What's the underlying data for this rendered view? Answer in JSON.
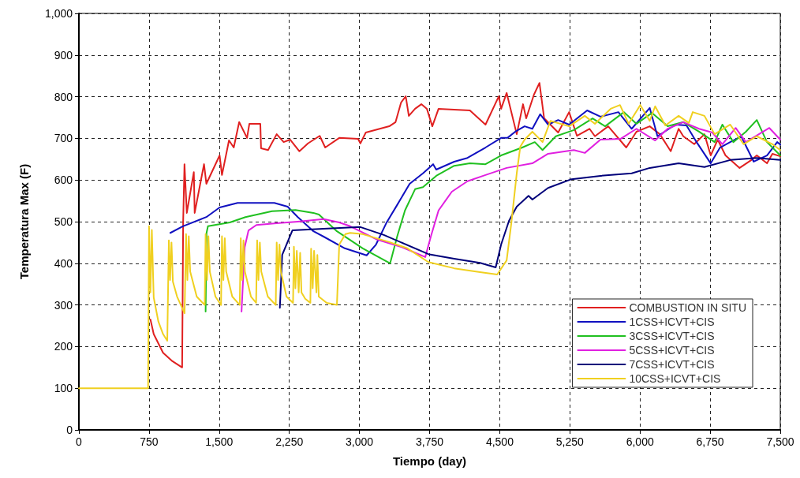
{
  "chart_data": {
    "type": "line",
    "xlabel": "Tiempo (day)",
    "ylabel": "Temperatura Max (F)",
    "xlim": [
      0,
      7500
    ],
    "xticks": [
      0,
      750,
      {
        "value": 1500,
        "label": "1,500"
      },
      {
        "value": 2250,
        "label": "2,250"
      },
      {
        "value": 3000,
        "label": "3,000"
      },
      {
        "value": 3750,
        "label": "3,750"
      },
      {
        "value": 4500,
        "label": "4,500"
      },
      {
        "value": 5250,
        "label": "5,250"
      },
      {
        "value": 6000,
        "label": "6,000"
      },
      {
        "value": 6750,
        "label": "6,750"
      },
      {
        "value": 7500,
        "label": "7,500"
      }
    ],
    "ylim": [
      0,
      1000
    ],
    "yticks": [
      0,
      100,
      200,
      300,
      400,
      500,
      600,
      700,
      800,
      900,
      {
        "value": 1000,
        "label": "1,000"
      }
    ],
    "grid": true,
    "legend": "bottom right",
    "marker": "none",
    "line_style": "solid",
    "series": [
      {
        "name": "COMBUSTION IN SITU",
        "color": "#e02020",
        "x": [
          765,
          800,
          900,
          1000,
          1104,
          1115,
          1129,
          1154,
          1229,
          1238,
          1338,
          1363,
          1505,
          1530,
          1605,
          1656,
          1714,
          1798,
          1823,
          1940,
          1948,
          2023,
          2115,
          2190,
          2258,
          2358,
          2450,
          2575,
          2634,
          2784,
          2985,
          3010,
          3068,
          3319,
          3386,
          3445,
          3495,
          3528,
          3595,
          3662,
          3721,
          3779,
          3846,
          4181,
          4348,
          4490,
          4515,
          4574,
          4682,
          4749,
          4783,
          4866,
          4925,
          4975,
          5125,
          5242,
          5326,
          5460,
          5518,
          5660,
          5853,
          5962,
          6104,
          6212,
          6329,
          6413,
          6463,
          6580,
          6689,
          6756,
          6831,
          6914,
          7065,
          7191,
          7249,
          7358,
          7416,
          7500
        ],
        "values": [
          265,
          230,
          185,
          165,
          150,
          500,
          638,
          521,
          619,
          521,
          638,
          591,
          659,
          612,
          695,
          678,
          739,
          701,
          735,
          735,
          676,
          672,
          710,
          691,
          697,
          669,
          688,
          706,
          678,
          701,
          699,
          688,
          714,
          729,
          739,
          786,
          801,
          754,
          771,
          782,
          771,
          729,
          771,
          767,
          733,
          801,
          771,
          809,
          710,
          782,
          748,
          805,
          833,
          748,
          714,
          763,
          706,
          723,
          705,
          729,
          678,
          716,
          729,
          710,
          669,
          723,
          705,
          686,
          710,
          659,
          697,
          659,
          629,
          648,
          659,
          640,
          663,
          657
        ]
      },
      {
        "name": "1CSS+ICVT+CIS",
        "color": "#1010c0",
        "x": [
          978,
          1112,
          1363,
          1505,
          1697,
          2090,
          2232,
          2341,
          2508,
          2617,
          2843,
          3077,
          3177,
          3286,
          3403,
          3537,
          3679,
          3788,
          3821,
          4013,
          4155,
          4348,
          4515,
          4582,
          4666,
          4766,
          4849,
          4933,
          5017,
          5125,
          5242,
          5435,
          5577,
          5769,
          5911,
          6104,
          6187,
          6380,
          6497,
          6605,
          6756,
          6856,
          6965,
          7082,
          7216,
          7358,
          7467,
          7500
        ],
        "values": [
          473,
          489,
          511,
          534,
          545,
          545,
          536,
          511,
          477,
          464,
          436,
          419,
          445,
          496,
          540,
          591,
          616,
          638,
          625,
          644,
          653,
          678,
          701,
          701,
          716,
          729,
          723,
          758,
          733,
          744,
          733,
          767,
          752,
          763,
          723,
          773,
          705,
          733,
          731,
          691,
          640,
          678,
          691,
          705,
          644,
          659,
          691,
          685
        ]
      },
      {
        "name": "3CSS+ICVT+CIS",
        "color": "#20c020",
        "x": [
          1355,
          1365,
          1380,
          1614,
          1781,
          2065,
          2316,
          2508,
          2567,
          2759,
          3035,
          3328,
          3403,
          3487,
          3595,
          3679,
          3821,
          4013,
          4181,
          4348,
          4515,
          4741,
          4875,
          4958,
          5100,
          5293,
          5493,
          5627,
          5828,
          5962,
          6129,
          6296,
          6463,
          6631,
          6798,
          6881,
          6998,
          7132,
          7249,
          7358,
          7500
        ],
        "values": [
          284,
          473,
          489,
          498,
          511,
          525,
          528,
          521,
          517,
          477,
          436,
          400,
          464,
          527,
          578,
          583,
          610,
          634,
          640,
          638,
          659,
          678,
          691,
          672,
          705,
          720,
          748,
          729,
          763,
          735,
          761,
          729,
          739,
          716,
          691,
          733,
          691,
          716,
          744,
          691,
          659
        ]
      },
      {
        "name": "5CSS+ICVT+CIS",
        "color": "#e020e0",
        "x": [
          1739,
          1773,
          1814,
          1898,
          2115,
          2341,
          2617,
          2784,
          2901,
          3177,
          3453,
          3704,
          3763,
          3846,
          3988,
          4155,
          4348,
          4574,
          4849,
          5017,
          5293,
          5410,
          5577,
          5794,
          5962,
          6162,
          6296,
          6463,
          6631,
          6773,
          6881,
          7023,
          7132,
          7383,
          7500
        ],
        "values": [
          284,
          439,
          479,
          492,
          496,
          500,
          506,
          498,
          489,
          458,
          439,
          415,
          464,
          527,
          572,
          597,
          612,
          629,
          640,
          663,
          672,
          665,
          697,
          699,
          723,
          695,
          723,
          739,
          723,
          714,
          686,
          725,
          691,
          725,
          697
        ]
      },
      {
        "name": "7CSS+ICVT+CIS",
        "color": "#00007a",
        "x": [
          2149,
          2174,
          2283,
          2617,
          3010,
          3261,
          3737,
          4013,
          4289,
          4457,
          4515,
          4599,
          4682,
          4808,
          4849,
          5017,
          5268,
          5577,
          5911,
          6104,
          6413,
          6689,
          6965,
          7249,
          7500
        ],
        "values": [
          293,
          420,
          479,
          483,
          487,
          468,
          422,
          411,
          401,
          390,
          445,
          502,
          536,
          562,
          553,
          581,
          602,
          610,
          616,
          629,
          640,
          631,
          648,
          653,
          648
        ]
      },
      {
        "name": "10CSS+ICVT+CIS",
        "color": "#f0d020",
        "x": [
          0,
          740,
          750,
          765,
          780,
          800,
          850,
          900,
          945,
          962,
          975,
          990,
          1005,
          1050,
          1130,
          1146,
          1160,
          1175,
          1190,
          1260,
          1345,
          1355,
          1370,
          1385,
          1400,
          1460,
          1520,
          1530,
          1545,
          1560,
          1575,
          1640,
          1720,
          1731,
          1745,
          1760,
          1775,
          1840,
          1895,
          1906,
          1920,
          1935,
          1950,
          2020,
          2105,
          2115,
          2130,
          2145,
          2160,
          2220,
          2290,
          2299,
          2315,
          2330,
          2350,
          2366,
          2380,
          2420,
          2475,
          2483,
          2500,
          2515,
          2540,
          2550,
          2565,
          2650,
          2759,
          2784,
          2850,
          2901,
          3035,
          3319,
          3512,
          3737,
          4013,
          4289,
          4473,
          4574,
          4624,
          4682,
          4720,
          4766,
          4849,
          4958,
          5042,
          5242,
          5410,
          5518,
          5686,
          5786,
          5878,
          6003,
          6104,
          6162,
          6271,
          6413,
          6522,
          6564,
          6689,
          6798,
          6965,
          7107,
          7249,
          7416,
          7500
        ],
        "values": [
          100,
          100,
          489,
          330,
          480,
          318,
          260,
          230,
          214,
          455,
          360,
          450,
          356,
          320,
          280,
          470,
          360,
          465,
          380,
          320,
          300,
          470,
          360,
          465,
          380,
          320,
          300,
          465,
          360,
          460,
          380,
          320,
          300,
          460,
          360,
          455,
          380,
          320,
          305,
          455,
          360,
          450,
          380,
          320,
          300,
          450,
          360,
          445,
          380,
          320,
          305,
          440,
          340,
          430,
          330,
          425,
          330,
          315,
          305,
          435,
          340,
          430,
          330,
          420,
          320,
          305,
          300,
          445,
          470,
          473,
          470,
          451,
          436,
          403,
          388,
          379,
          373,
          407,
          496,
          616,
          680,
          697,
          716,
          691,
          742,
          729,
          754,
          735,
          771,
          780,
          735,
          780,
          742,
          777,
          731,
          754,
          737,
          763,
          754,
          710,
          733,
          686,
          705,
          686,
          672
        ]
      }
    ]
  }
}
